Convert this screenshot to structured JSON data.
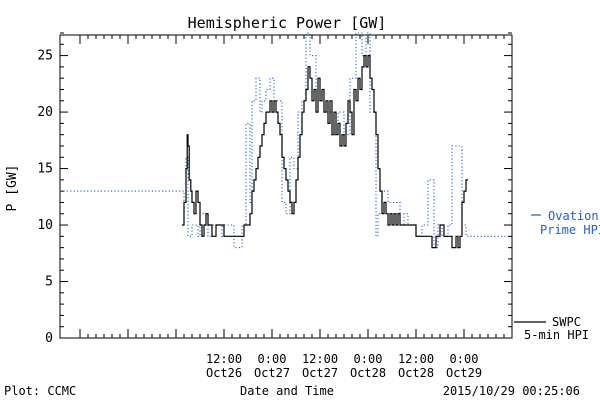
{
  "chart_data": {
    "type": "line",
    "title": "Hemispheric Power [GW]",
    "ylabel": "P [GW]",
    "xlabel": "Date and Time",
    "ylim": [
      0,
      27
    ],
    "yticks": [
      0,
      5,
      10,
      15,
      20,
      25
    ],
    "xlim": [
      -29,
      84
    ],
    "xticks": [
      {
        "hours": 12,
        "line1": "12:00",
        "line2": "Oct26"
      },
      {
        "hours": 24,
        "line1": "0:00",
        "line2": "Oct27"
      },
      {
        "hours": 36,
        "line1": "12:00",
        "line2": "Oct27"
      },
      {
        "hours": 48,
        "line1": "0:00",
        "line2": "Oct28"
      },
      {
        "hours": 60,
        "line1": "12:00",
        "line2": "Oct28"
      },
      {
        "hours": 72,
        "line1": "0:00",
        "line2": "Oct29"
      }
    ],
    "series": [
      {
        "name": "Ovation Prime HPI",
        "color": "#1f5fc8",
        "style": "step-dotted",
        "x": [
          -29,
          2,
          2.5,
          3,
          4,
          5.5,
          6,
          8,
          9,
          11.5,
          12,
          14.5,
          16.5,
          17.5,
          18.5,
          19,
          20,
          21,
          21.5,
          22.5,
          23.5,
          24.5,
          26.5,
          27.5,
          28.5,
          29.5,
          30.5,
          31.5,
          32.5,
          33.5,
          35,
          37,
          39,
          40.5,
          42,
          43.5,
          45,
          46.5,
          47.5,
          48.5,
          50,
          50.5,
          51.5,
          53,
          56,
          57,
          58,
          60,
          61.5,
          63,
          64.5,
          65.5,
          66.5,
          68,
          69,
          71.5,
          72.5,
          83
        ],
        "y": [
          13,
          12,
          16,
          9,
          10,
          9,
          11,
          9,
          10,
          9,
          10,
          8,
          10,
          19,
          12,
          21,
          23,
          20,
          21,
          22,
          23,
          21,
          12,
          11,
          16,
          15,
          20,
          21,
          27,
          25,
          21,
          20,
          18,
          20,
          18,
          23,
          27,
          25,
          27,
          20,
          9,
          11,
          13,
          12,
          10,
          11,
          10,
          9,
          10,
          14,
          8,
          10,
          9,
          10,
          17,
          10,
          9,
          9
        ]
      },
      {
        "name": "SWPC 5-min HPI",
        "color": "#000000",
        "style": "step-solid",
        "x": [
          1.5,
          2,
          2.5,
          2.8,
          3,
          3.3,
          3.7,
          4,
          4.5,
          5,
          5.5,
          6,
          6.5,
          7,
          7.5,
          8,
          9,
          10,
          11,
          12,
          13,
          14,
          15,
          16,
          17,
          18,
          18.5,
          19,
          19.5,
          20,
          20.5,
          21,
          21.5,
          22,
          22.5,
          23,
          23.5,
          24,
          24.5,
          25,
          25.5,
          26,
          26.5,
          27,
          27.5,
          28,
          28.5,
          29,
          29.5,
          30,
          30.5,
          31,
          31.5,
          32,
          32.5,
          33,
          33.5,
          34,
          34.5,
          35,
          35.5,
          36,
          36.5,
          37,
          37.5,
          38,
          38.5,
          39,
          39.5,
          40,
          40.5,
          41,
          41.5,
          42,
          42.5,
          43,
          43.5,
          44,
          44.5,
          45,
          45.5,
          46,
          46.5,
          47,
          47.5,
          48,
          48.5,
          49,
          49.5,
          50,
          50.5,
          51,
          51.5,
          52,
          52.5,
          53,
          53.5,
          54,
          54.5,
          55,
          55.5,
          56,
          57,
          58,
          59,
          60,
          61,
          62,
          63,
          64,
          65,
          66,
          67,
          68,
          69,
          70,
          70.5,
          71,
          71.5,
          72,
          72.5,
          73
        ],
        "y": [
          10,
          12,
          15,
          18,
          17,
          14,
          13,
          12,
          11,
          13,
          12,
          10,
          9,
          10,
          11,
          10,
          9,
          10,
          10,
          9,
          9,
          9,
          9,
          9,
          10,
          10,
          11,
          13,
          14,
          15,
          16,
          17,
          18,
          19,
          20,
          20,
          21,
          20,
          21,
          20,
          19,
          18,
          16,
          15,
          14,
          13,
          12,
          11,
          12,
          14,
          16,
          18,
          20,
          21,
          22,
          24,
          23,
          21,
          22,
          20,
          23,
          21,
          22,
          20,
          21,
          19,
          21,
          18,
          20,
          18,
          19,
          17,
          18,
          17,
          19,
          21,
          20,
          18,
          22,
          21,
          23,
          22,
          24,
          25,
          24,
          25,
          23,
          22,
          20,
          18,
          15,
          13,
          11,
          12,
          11,
          10,
          11,
          10,
          11,
          10,
          11,
          10,
          10,
          10,
          10,
          9,
          9,
          9,
          9,
          8,
          9,
          10,
          9,
          9,
          8,
          9,
          8,
          9,
          12,
          13,
          14,
          14
        ]
      }
    ],
    "legend_position": "right"
  },
  "footer": {
    "left": "Plot: CCMC",
    "right": "2015/10/29 00:25:06"
  },
  "legend": {
    "ovation_line1": "Ovation",
    "ovation_line2": "Prime HPI",
    "swpc_line1": "SWPC",
    "swpc_line2": "5-min HPI"
  },
  "colors": {
    "ovation": "#1f5fc8",
    "swpc": "#000000"
  }
}
